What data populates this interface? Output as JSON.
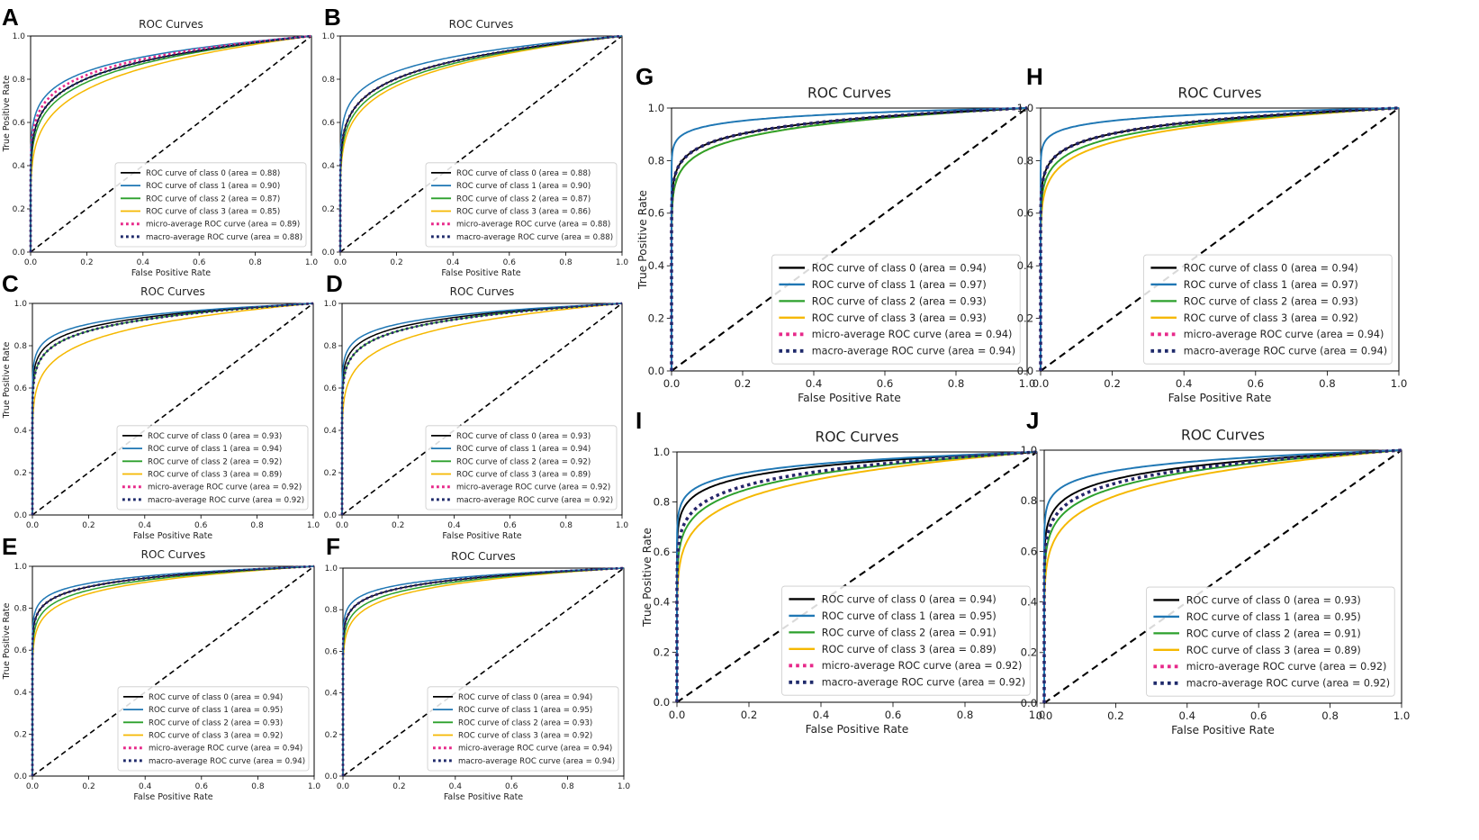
{
  "figure": {
    "series_styles": [
      {
        "key": "class0",
        "color": "#000000",
        "dash": "solid"
      },
      {
        "key": "class1",
        "color": "#1f77b4",
        "dash": "solid"
      },
      {
        "key": "class2",
        "color": "#2ca02c",
        "dash": "solid"
      },
      {
        "key": "class3",
        "color": "#f5b800",
        "dash": "solid"
      },
      {
        "key": "micro",
        "color": "#e7298a",
        "dash": "dotted"
      },
      {
        "key": "macro",
        "color": "#1f2a6b",
        "dash": "dotted"
      }
    ],
    "chance_line_color": "#000000"
  },
  "chart_data": [
    {
      "panel": "A",
      "type": "line",
      "title": "ROC Curves",
      "xlabel": "False Positive Rate",
      "ylabel": "True Positive Rate",
      "xlim": [
        0,
        1
      ],
      "ylim": [
        0,
        1
      ],
      "xticks": [
        "0.0",
        "0.2",
        "0.4",
        "0.6",
        "0.8",
        "1.0"
      ],
      "yticks": [
        "0.0",
        "0.2",
        "0.4",
        "0.6",
        "0.8",
        "1.0"
      ],
      "legend_position": "lower-right",
      "series": [
        {
          "name": "ROC curve of class 0 (area = 0.88)",
          "auc": 0.88
        },
        {
          "name": "ROC curve of class 1 (area = 0.90)",
          "auc": 0.9
        },
        {
          "name": "ROC curve of class 2 (area = 0.87)",
          "auc": 0.87
        },
        {
          "name": "ROC curve of class 3 (area = 0.85)",
          "auc": 0.85
        },
        {
          "name": "micro-average ROC curve (area = 0.89)",
          "auc": 0.89
        },
        {
          "name": "macro-average ROC curve (area = 0.88)",
          "auc": 0.88
        }
      ]
    },
    {
      "panel": "B",
      "type": "line",
      "title": "ROC Curves",
      "xlabel": "False Positive Rate",
      "ylabel": "",
      "xlim": [
        0,
        1
      ],
      "ylim": [
        0,
        1
      ],
      "xticks": [
        "0.0",
        "0.2",
        "0.4",
        "0.6",
        "0.8",
        "1.0"
      ],
      "yticks": [
        "0.0",
        "0.2",
        "0.4",
        "0.6",
        "0.8",
        "1.0"
      ],
      "legend_position": "lower-right",
      "series": [
        {
          "name": "ROC curve of class 0 (area = 0.88)",
          "auc": 0.88
        },
        {
          "name": "ROC curve of class 1 (area = 0.90)",
          "auc": 0.9
        },
        {
          "name": "ROC curve of class 2 (area = 0.87)",
          "auc": 0.87
        },
        {
          "name": "ROC curve of class 3 (area = 0.86)",
          "auc": 0.86
        },
        {
          "name": "micro-average ROC curve (area = 0.88)",
          "auc": 0.88
        },
        {
          "name": "macro-average ROC curve (area = 0.88)",
          "auc": 0.88
        }
      ]
    },
    {
      "panel": "C",
      "type": "line",
      "title": "ROC Curves",
      "xlabel": "False Positive Rate",
      "ylabel": "True Positive Rate",
      "xlim": [
        0,
        1
      ],
      "ylim": [
        0,
        1
      ],
      "xticks": [
        "0.0",
        "0.2",
        "0.4",
        "0.6",
        "0.8",
        "1.0"
      ],
      "yticks": [
        "0.0",
        "0.2",
        "0.4",
        "0.6",
        "0.8",
        "1.0"
      ],
      "legend_position": "lower-right",
      "series": [
        {
          "name": "ROC curve of class 0 (area = 0.93)",
          "auc": 0.93
        },
        {
          "name": "ROC curve of class 1 (area = 0.94)",
          "auc": 0.94
        },
        {
          "name": "ROC curve of class 2 (area = 0.92)",
          "auc": 0.92
        },
        {
          "name": "ROC curve of class 3 (area = 0.89)",
          "auc": 0.89
        },
        {
          "name": "micro-average ROC curve (area = 0.92)",
          "auc": 0.92
        },
        {
          "name": "macro-average ROC curve (area = 0.92)",
          "auc": 0.92
        }
      ]
    },
    {
      "panel": "D",
      "type": "line",
      "title": "ROC Curves",
      "xlabel": "False Positive Rate",
      "ylabel": "",
      "xlim": [
        0,
        1
      ],
      "ylim": [
        0,
        1
      ],
      "xticks": [
        "0.0",
        "0.2",
        "0.4",
        "0.6",
        "0.8",
        "1.0"
      ],
      "yticks": [
        "0.0",
        "0.2",
        "0.4",
        "0.6",
        "0.8",
        "1.0"
      ],
      "legend_position": "lower-right",
      "series": [
        {
          "name": "ROC curve of class 0 (area = 0.93)",
          "auc": 0.93
        },
        {
          "name": "ROC curve of class 1 (area = 0.94)",
          "auc": 0.94
        },
        {
          "name": "ROC curve of class 2 (area = 0.92)",
          "auc": 0.92
        },
        {
          "name": "ROC curve of class 3 (area = 0.89)",
          "auc": 0.89
        },
        {
          "name": "micro-average ROC curve (area = 0.92)",
          "auc": 0.92
        },
        {
          "name": "macro-average ROC curve (area = 0.92)",
          "auc": 0.92
        }
      ]
    },
    {
      "panel": "E",
      "type": "line",
      "title": "ROC Curves",
      "xlabel": "False Positive Rate",
      "ylabel": "True Positive Rate",
      "xlim": [
        0,
        1
      ],
      "ylim": [
        0,
        1
      ],
      "xticks": [
        "0.0",
        "0.2",
        "0.4",
        "0.6",
        "0.8",
        "1.0"
      ],
      "yticks": [
        "0.0",
        "0.2",
        "0.4",
        "0.6",
        "0.8",
        "1.0"
      ],
      "legend_position": "lower-right",
      "series": [
        {
          "name": "ROC curve of class 0 (area = 0.94)",
          "auc": 0.94
        },
        {
          "name": "ROC curve of class 1 (area = 0.95)",
          "auc": 0.95
        },
        {
          "name": "ROC curve of class 2 (area = 0.93)",
          "auc": 0.93
        },
        {
          "name": "ROC curve of class 3 (area = 0.92)",
          "auc": 0.92
        },
        {
          "name": "micro-average ROC curve (area = 0.94)",
          "auc": 0.94
        },
        {
          "name": "macro-average ROC curve (area = 0.94)",
          "auc": 0.94
        }
      ]
    },
    {
      "panel": "F",
      "type": "line",
      "title": "ROC Curves",
      "xlabel": "False Positive Rate",
      "ylabel": "",
      "xlim": [
        0,
        1
      ],
      "ylim": [
        0,
        1
      ],
      "xticks": [
        "0.0",
        "0.2",
        "0.4",
        "0.6",
        "0.8",
        "1.0"
      ],
      "yticks": [
        "0.0",
        "0.2",
        "0.4",
        "0.6",
        "0.8",
        "1.0"
      ],
      "legend_position": "lower-right",
      "series": [
        {
          "name": "ROC curve of class 0 (area = 0.94)",
          "auc": 0.94
        },
        {
          "name": "ROC curve of class 1 (area = 0.95)",
          "auc": 0.95
        },
        {
          "name": "ROC curve of class 2 (area = 0.93)",
          "auc": 0.93
        },
        {
          "name": "ROC curve of class 3 (area = 0.92)",
          "auc": 0.92
        },
        {
          "name": "micro-average ROC curve (area = 0.94)",
          "auc": 0.94
        },
        {
          "name": "macro-average ROC curve (area = 0.94)",
          "auc": 0.94
        }
      ]
    },
    {
      "panel": "G",
      "type": "line",
      "title": "ROC Curves",
      "xlabel": "False Positive Rate",
      "ylabel": "True Positive Rate",
      "xlim": [
        0,
        1
      ],
      "ylim": [
        0,
        1
      ],
      "xticks": [
        "0.0",
        "0.2",
        "0.4",
        "0.6",
        "0.8",
        "1.0"
      ],
      "yticks": [
        "0.0",
        "0.2",
        "0.4",
        "0.6",
        "0.8",
        "1.0"
      ],
      "legend_position": "lower-right",
      "series": [
        {
          "name": "ROC curve of class 0 (area = 0.94)",
          "auc": 0.94
        },
        {
          "name": "ROC curve of class 1 (area = 0.97)",
          "auc": 0.97
        },
        {
          "name": "ROC curve of class 2 (area = 0.93)",
          "auc": 0.93
        },
        {
          "name": "ROC curve of class 3 (area = 0.93)",
          "auc": 0.93
        },
        {
          "name": "micro-average ROC curve (area = 0.94)",
          "auc": 0.94
        },
        {
          "name": "macro-average ROC curve (area = 0.94)",
          "auc": 0.94
        }
      ]
    },
    {
      "panel": "H",
      "type": "line",
      "title": "ROC Curves",
      "xlabel": "False Positive Rate",
      "ylabel": "",
      "xlim": [
        0,
        1
      ],
      "ylim": [
        0,
        1
      ],
      "xticks": [
        "0.0",
        "0.2",
        "0.4",
        "0.6",
        "0.8",
        "1.0"
      ],
      "yticks": [
        "0.0",
        "0.2",
        "0.4",
        "0.6",
        "0.8",
        "1.0"
      ],
      "legend_position": "lower-right",
      "series": [
        {
          "name": "ROC curve of class 0 (area = 0.94)",
          "auc": 0.94
        },
        {
          "name": "ROC curve of class 1 (area = 0.97)",
          "auc": 0.97
        },
        {
          "name": "ROC curve of class 2 (area = 0.93)",
          "auc": 0.93
        },
        {
          "name": "ROC curve of class 3 (area = 0.92)",
          "auc": 0.92
        },
        {
          "name": "micro-average ROC curve (area = 0.94)",
          "auc": 0.94
        },
        {
          "name": "macro-average ROC curve (area = 0.94)",
          "auc": 0.94
        }
      ]
    },
    {
      "panel": "I",
      "type": "line",
      "title": "ROC Curves",
      "xlabel": "False Positive Rate",
      "ylabel": "True Positive Rate",
      "xlim": [
        0,
        1
      ],
      "ylim": [
        0,
        1
      ],
      "xticks": [
        "0.0",
        "0.2",
        "0.4",
        "0.6",
        "0.8",
        "1.0"
      ],
      "yticks": [
        "0.0",
        "0.2",
        "0.4",
        "0.6",
        "0.8",
        "1.0"
      ],
      "legend_position": "lower-right",
      "series": [
        {
          "name": "ROC curve of class 0 (area = 0.94)",
          "auc": 0.94
        },
        {
          "name": "ROC curve of class 1 (area = 0.95)",
          "auc": 0.95
        },
        {
          "name": "ROC curve of class 2 (area = 0.91)",
          "auc": 0.91
        },
        {
          "name": "ROC curve of class 3 (area = 0.89)",
          "auc": 0.89
        },
        {
          "name": "micro-average ROC curve (area = 0.92)",
          "auc": 0.92
        },
        {
          "name": "macro-average ROC curve (area = 0.92)",
          "auc": 0.92
        }
      ]
    },
    {
      "panel": "J",
      "type": "line",
      "title": "ROC Curves",
      "xlabel": "False Positive Rate",
      "ylabel": "",
      "xlim": [
        0,
        1
      ],
      "ylim": [
        0,
        1
      ],
      "xticks": [
        "0.0",
        "0.2",
        "0.4",
        "0.6",
        "0.8",
        "1.0"
      ],
      "yticks": [
        "0.0",
        "0.2",
        "0.4",
        "0.6",
        "0.8",
        "1.0"
      ],
      "legend_position": "lower-right",
      "series": [
        {
          "name": "ROC curve of class 0 (area = 0.93)",
          "auc": 0.93
        },
        {
          "name": "ROC curve of class 1 (area = 0.95)",
          "auc": 0.95
        },
        {
          "name": "ROC curve of class 2 (area = 0.91)",
          "auc": 0.91
        },
        {
          "name": "ROC curve of class 3 (area = 0.89)",
          "auc": 0.89
        },
        {
          "name": "micro-average ROC curve (area = 0.92)",
          "auc": 0.92
        },
        {
          "name": "macro-average ROC curve (area = 0.92)",
          "auc": 0.92
        }
      ]
    }
  ]
}
